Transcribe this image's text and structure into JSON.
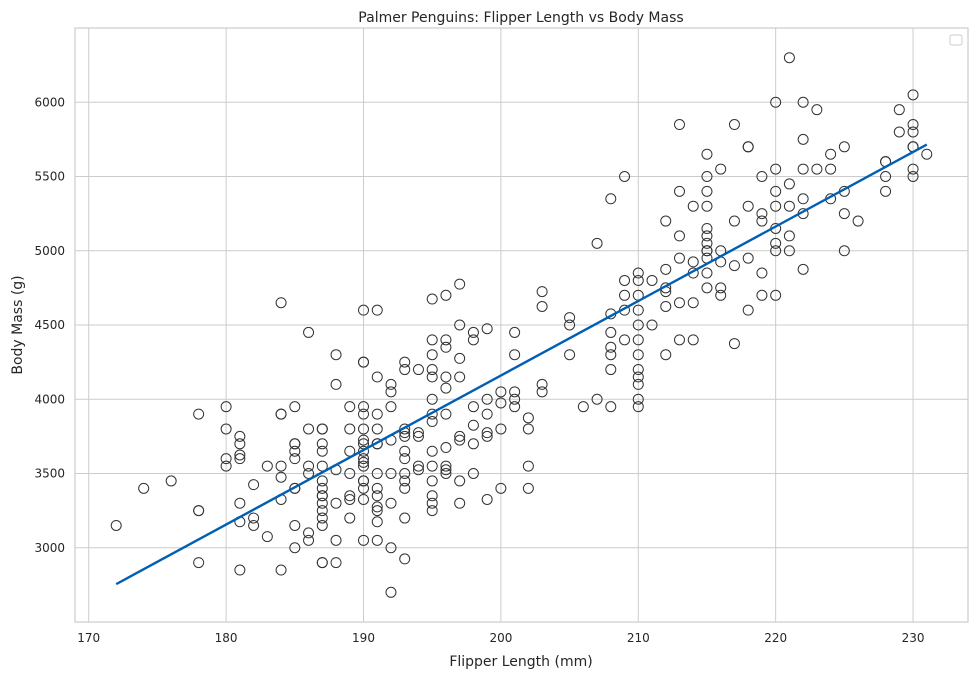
{
  "chart_data": {
    "type": "scatter",
    "title": "Palmer Penguins: Flipper Length vs Body Mass",
    "xlabel": "Flipper Length (mm)",
    "ylabel": "Body Mass (g)",
    "xlim": [
      169,
      234
    ],
    "ylim": [
      2500,
      6500
    ],
    "x_ticks": [
      170,
      180,
      190,
      200,
      210,
      220,
      230
    ],
    "y_ticks": [
      3000,
      3500,
      4000,
      4500,
      5000,
      5500,
      6000
    ],
    "x_tick_labels": [
      "170",
      "180",
      "190",
      "200",
      "210",
      "220",
      "230"
    ],
    "y_tick_labels": [
      "3000",
      "3500",
      "4000",
      "4500",
      "5000",
      "5500",
      "6000"
    ],
    "grid": true,
    "legend": {
      "placement": "top-right",
      "entries": []
    },
    "marker_edge_color": "#333333",
    "line_color": "#005fb3",
    "regression_line": {
      "x": [
        172,
        231
      ],
      "y": [
        2755,
        5715
      ]
    },
    "points": [
      [
        172,
        3150
      ],
      [
        174,
        3400
      ],
      [
        176,
        3450
      ],
      [
        178,
        3250
      ],
      [
        178,
        3250
      ],
      [
        178,
        3900
      ],
      [
        178,
        2900
      ],
      [
        180,
        3950
      ],
      [
        180,
        3800
      ],
      [
        180,
        3600
      ],
      [
        180,
        3550
      ],
      [
        181,
        3750
      ],
      [
        181,
        3700
      ],
      [
        181,
        3625
      ],
      [
        181,
        3600
      ],
      [
        181,
        3300
      ],
      [
        181,
        3175
      ],
      [
        181,
        2850
      ],
      [
        182,
        3425
      ],
      [
        182,
        3200
      ],
      [
        182,
        3150
      ],
      [
        183,
        3550
      ],
      [
        183,
        3075
      ],
      [
        184,
        4650
      ],
      [
        184,
        3900
      ],
      [
        184,
        3900
      ],
      [
        184,
        3550
      ],
      [
        184,
        3475
      ],
      [
        184,
        3325
      ],
      [
        184,
        2850
      ],
      [
        185,
        3950
      ],
      [
        185,
        3700
      ],
      [
        185,
        3700
      ],
      [
        185,
        3650
      ],
      [
        185,
        3600
      ],
      [
        185,
        3400
      ],
      [
        185,
        3400
      ],
      [
        185,
        3150
      ],
      [
        185,
        3000
      ],
      [
        186,
        4450
      ],
      [
        186,
        3800
      ],
      [
        186,
        3550
      ],
      [
        186,
        3500
      ],
      [
        186,
        3100
      ],
      [
        186,
        3050
      ],
      [
        187,
        3800
      ],
      [
        187,
        3800
      ],
      [
        187,
        3700
      ],
      [
        187,
        3650
      ],
      [
        187,
        3550
      ],
      [
        187,
        3450
      ],
      [
        187,
        3400
      ],
      [
        187,
        3350
      ],
      [
        187,
        3350
      ],
      [
        187,
        3300
      ],
      [
        187,
        3250
      ],
      [
        187,
        3200
      ],
      [
        187,
        3150
      ],
      [
        187,
        2900
      ],
      [
        187,
        2900
      ],
      [
        188,
        4300
      ],
      [
        188,
        4100
      ],
      [
        188,
        3525
      ],
      [
        188,
        3300
      ],
      [
        188,
        3050
      ],
      [
        188,
        2900
      ],
      [
        189,
        3950
      ],
      [
        189,
        3800
      ],
      [
        189,
        3650
      ],
      [
        189,
        3500
      ],
      [
        189,
        3350
      ],
      [
        189,
        3325
      ],
      [
        189,
        3200
      ],
      [
        190,
        4600
      ],
      [
        190,
        4250
      ],
      [
        190,
        4250
      ],
      [
        190,
        3950
      ],
      [
        190,
        3900
      ],
      [
        190,
        3800
      ],
      [
        190,
        3725
      ],
      [
        190,
        3700
      ],
      [
        190,
        3650
      ],
      [
        190,
        3600
      ],
      [
        190,
        3575
      ],
      [
        190,
        3550
      ],
      [
        190,
        3450
      ],
      [
        190,
        3450
      ],
      [
        190,
        3400
      ],
      [
        190,
        3325
      ],
      [
        190,
        3050
      ],
      [
        191,
        4600
      ],
      [
        191,
        4150
      ],
      [
        191,
        3900
      ],
      [
        191,
        3800
      ],
      [
        191,
        3700
      ],
      [
        191,
        3700
      ],
      [
        191,
        3500
      ],
      [
        191,
        3400
      ],
      [
        191,
        3350
      ],
      [
        191,
        3275
      ],
      [
        191,
        3250
      ],
      [
        191,
        3175
      ],
      [
        191,
        3050
      ],
      [
        192,
        4100
      ],
      [
        192,
        4050
      ],
      [
        192,
        3950
      ],
      [
        192,
        3725
      ],
      [
        192,
        3500
      ],
      [
        192,
        3300
      ],
      [
        192,
        3000
      ],
      [
        192,
        2700
      ],
      [
        193,
        4250
      ],
      [
        193,
        4200
      ],
      [
        193,
        3800
      ],
      [
        193,
        3775
      ],
      [
        193,
        3750
      ],
      [
        193,
        3650
      ],
      [
        193,
        3600
      ],
      [
        193,
        3500
      ],
      [
        193,
        3450
      ],
      [
        193,
        3400
      ],
      [
        193,
        3200
      ],
      [
        193,
        2925
      ],
      [
        194,
        4200
      ],
      [
        194,
        3775
      ],
      [
        194,
        3750
      ],
      [
        194,
        3550
      ],
      [
        194,
        3525
      ],
      [
        195,
        4675
      ],
      [
        195,
        4400
      ],
      [
        195,
        4300
      ],
      [
        195,
        4200
      ],
      [
        195,
        4150
      ],
      [
        195,
        4000
      ],
      [
        195,
        3900
      ],
      [
        195,
        3850
      ],
      [
        195,
        3650
      ],
      [
        195,
        3550
      ],
      [
        195,
        3450
      ],
      [
        195,
        3350
      ],
      [
        195,
        3300
      ],
      [
        195,
        3250
      ],
      [
        196,
        4700
      ],
      [
        196,
        4400
      ],
      [
        196,
        4350
      ],
      [
        196,
        4150
      ],
      [
        196,
        4075
      ],
      [
        196,
        3900
      ],
      [
        196,
        3675
      ],
      [
        196,
        3550
      ],
      [
        196,
        3525
      ],
      [
        196,
        3500
      ],
      [
        197,
        4775
      ],
      [
        197,
        4500
      ],
      [
        197,
        4275
      ],
      [
        197,
        4150
      ],
      [
        197,
        3750
      ],
      [
        197,
        3725
      ],
      [
        197,
        3450
      ],
      [
        197,
        3300
      ],
      [
        198,
        4450
      ],
      [
        198,
        4400
      ],
      [
        198,
        3950
      ],
      [
        198,
        3825
      ],
      [
        198,
        3700
      ],
      [
        198,
        3500
      ],
      [
        199,
        4475
      ],
      [
        199,
        4000
      ],
      [
        199,
        3900
      ],
      [
        199,
        3775
      ],
      [
        199,
        3750
      ],
      [
        199,
        3325
      ],
      [
        200,
        4050
      ],
      [
        200,
        3975
      ],
      [
        200,
        3800
      ],
      [
        200,
        3400
      ],
      [
        201,
        4450
      ],
      [
        201,
        4300
      ],
      [
        201,
        4050
      ],
      [
        201,
        4000
      ],
      [
        201,
        3950
      ],
      [
        202,
        3875
      ],
      [
        202,
        3800
      ],
      [
        202,
        3550
      ],
      [
        202,
        3400
      ],
      [
        203,
        4725
      ],
      [
        203,
        4625
      ],
      [
        203,
        4100
      ],
      [
        203,
        4050
      ],
      [
        205,
        4550
      ],
      [
        205,
        4500
      ],
      [
        205,
        4300
      ],
      [
        206,
        3950
      ],
      [
        207,
        5050
      ],
      [
        207,
        4000
      ],
      [
        208,
        5350
      ],
      [
        208,
        4575
      ],
      [
        208,
        4450
      ],
      [
        208,
        4350
      ],
      [
        208,
        4300
      ],
      [
        208,
        4200
      ],
      [
        208,
        3950
      ],
      [
        209,
        5500
      ],
      [
        209,
        4800
      ],
      [
        209,
        4700
      ],
      [
        209,
        4600
      ],
      [
        209,
        4400
      ],
      [
        210,
        4850
      ],
      [
        210,
        4800
      ],
      [
        210,
        4700
      ],
      [
        210,
        4600
      ],
      [
        210,
        4500
      ],
      [
        210,
        4400
      ],
      [
        210,
        4300
      ],
      [
        210,
        4200
      ],
      [
        210,
        4150
      ],
      [
        210,
        4100
      ],
      [
        210,
        4000
      ],
      [
        210,
        3950
      ],
      [
        211,
        4800
      ],
      [
        211,
        4500
      ],
      [
        212,
        5200
      ],
      [
        212,
        4875
      ],
      [
        212,
        4750
      ],
      [
        212,
        4725
      ],
      [
        212,
        4625
      ],
      [
        212,
        4300
      ],
      [
        213,
        5850
      ],
      [
        213,
        5400
      ],
      [
        213,
        5100
      ],
      [
        213,
        4950
      ],
      [
        213,
        4650
      ],
      [
        213,
        4400
      ],
      [
        214,
        5300
      ],
      [
        214,
        4925
      ],
      [
        214,
        4850
      ],
      [
        214,
        4650
      ],
      [
        214,
        4400
      ],
      [
        215,
        5650
      ],
      [
        215,
        5500
      ],
      [
        215,
        5400
      ],
      [
        215,
        5300
      ],
      [
        215,
        5150
      ],
      [
        215,
        5100
      ],
      [
        215,
        5050
      ],
      [
        215,
        5000
      ],
      [
        215,
        5000
      ],
      [
        215,
        4950
      ],
      [
        215,
        4850
      ],
      [
        215,
        4750
      ],
      [
        216,
        5550
      ],
      [
        216,
        5000
      ],
      [
        216,
        4925
      ],
      [
        216,
        4750
      ],
      [
        216,
        4700
      ],
      [
        217,
        5850
      ],
      [
        217,
        5200
      ],
      [
        217,
        4900
      ],
      [
        217,
        4375
      ],
      [
        218,
        5700
      ],
      [
        218,
        5700
      ],
      [
        218,
        5300
      ],
      [
        218,
        4950
      ],
      [
        218,
        4600
      ],
      [
        219,
        5500
      ],
      [
        219,
        5250
      ],
      [
        219,
        5200
      ],
      [
        219,
        4850
      ],
      [
        219,
        4700
      ],
      [
        220,
        6000
      ],
      [
        220,
        5550
      ],
      [
        220,
        5400
      ],
      [
        220,
        5300
      ],
      [
        220,
        5150
      ],
      [
        220,
        5050
      ],
      [
        220,
        5000
      ],
      [
        220,
        4700
      ],
      [
        221,
        6300
      ],
      [
        221,
        5450
      ],
      [
        221,
        5300
      ],
      [
        221,
        5100
      ],
      [
        221,
        5000
      ],
      [
        222,
        6000
      ],
      [
        222,
        5750
      ],
      [
        222,
        5550
      ],
      [
        222,
        5350
      ],
      [
        222,
        5250
      ],
      [
        222,
        4875
      ],
      [
        223,
        5950
      ],
      [
        223,
        5550
      ],
      [
        224,
        5650
      ],
      [
        224,
        5550
      ],
      [
        224,
        5350
      ],
      [
        225,
        5700
      ],
      [
        225,
        5400
      ],
      [
        225,
        5250
      ],
      [
        225,
        5000
      ],
      [
        226,
        5200
      ],
      [
        228,
        5600
      ],
      [
        228,
        5600
      ],
      [
        228,
        5500
      ],
      [
        228,
        5400
      ],
      [
        229,
        5950
      ],
      [
        229,
        5800
      ],
      [
        230,
        6050
      ],
      [
        230,
        5850
      ],
      [
        230,
        5800
      ],
      [
        230,
        5700
      ],
      [
        230,
        5700
      ],
      [
        230,
        5550
      ],
      [
        230,
        5500
      ],
      [
        231,
        5650
      ]
    ]
  }
}
